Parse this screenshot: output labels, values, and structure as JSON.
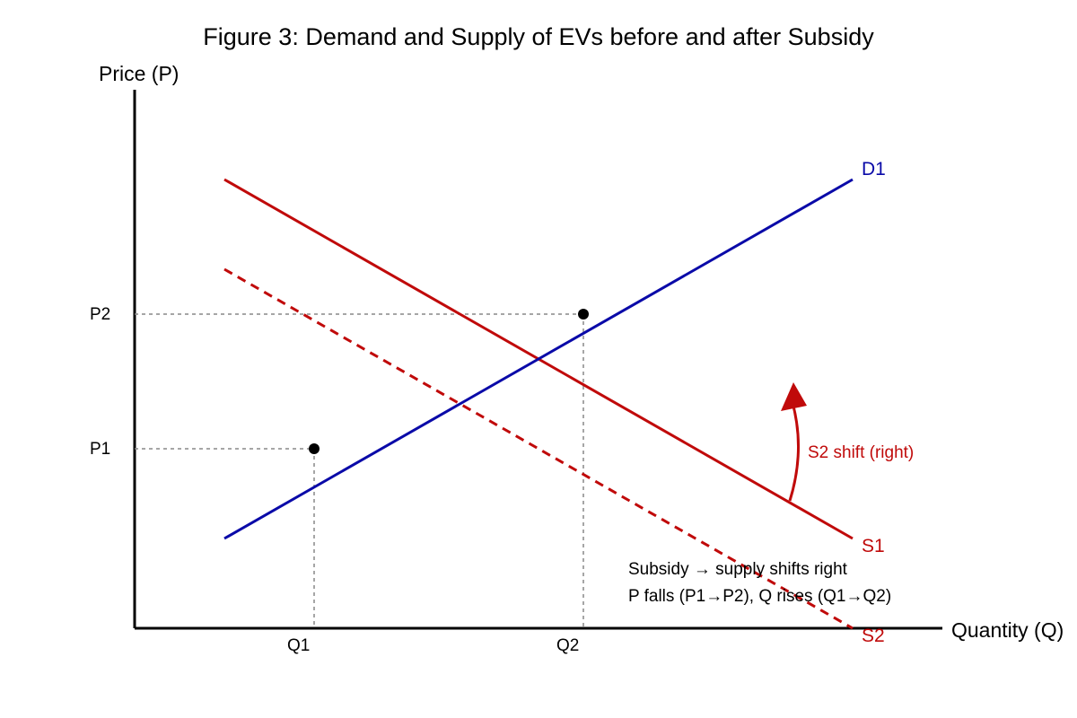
{
  "title": "Figure 3: Demand and Supply of EVs before and after Subsidy",
  "axes": {
    "y_label": "Price (P)",
    "x_label": "Quantity (Q)"
  },
  "ticks": {
    "p2": "P2",
    "p1": "P1",
    "q1": "Q1",
    "q2": "Q2"
  },
  "curves": {
    "d1": {
      "label": "D1",
      "color": "#0a0aa8"
    },
    "s1": {
      "label": "S1",
      "color": "#c00a0a"
    },
    "s2": {
      "label": "S2",
      "color": "#c00a0a"
    }
  },
  "shift_label": "S2 shift (right)",
  "notes": {
    "line1": "Subsidy → supply shifts right",
    "line2": "P falls (P1→P2), Q rises (Q1→Q2)"
  }
}
